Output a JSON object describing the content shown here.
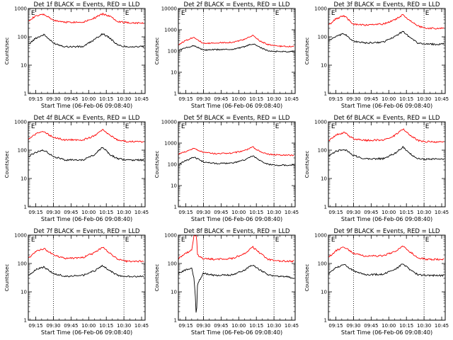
{
  "chart_data": [
    {
      "type": "line",
      "title": "Det 1f BLACK = Events, RED = LLD",
      "xlabel": "Start Time (06-Feb-06 09:08:40)",
      "ylabel": "Counts/sec",
      "yscale": "log",
      "ylim": [
        1,
        1000
      ],
      "xlim": [
        "09:08:40",
        "10:48:00"
      ],
      "xticks": [
        "09:15",
        "09:30",
        "09:45",
        "10:00",
        "10:15",
        "10:30",
        "10:45"
      ],
      "yticks": [
        "1",
        "10",
        "100",
        "1000"
      ],
      "vlines": [
        "09:30",
        "10:30"
      ],
      "markers": [
        {
          "label": "E",
          "time": "09:11"
        },
        {
          "label": "E",
          "time": "10:31"
        }
      ],
      "series": [
        {
          "color": "#ff0000",
          "x": [
            "09:09",
            "09:15",
            "09:22",
            "09:30",
            "09:40",
            "09:55",
            "10:05",
            "10:12",
            "10:18",
            "10:25",
            "10:32",
            "10:40",
            "10:47"
          ],
          "values": [
            380,
            540,
            620,
            380,
            330,
            330,
            470,
            640,
            540,
            350,
            320,
            310,
            310
          ]
        },
        {
          "color": "#000000",
          "x": [
            "09:09",
            "09:15",
            "09:22",
            "09:30",
            "09:40",
            "09:55",
            "10:05",
            "10:12",
            "10:18",
            "10:25",
            "10:32",
            "10:40",
            "10:47"
          ],
          "values": [
            55,
            90,
            120,
            60,
            45,
            45,
            80,
            130,
            90,
            50,
            45,
            45,
            45
          ]
        }
      ]
    },
    {
      "type": "line",
      "title": "Det 2f BLACK = Events, RED = LLD",
      "xlabel": "Start Time (06-Feb-06 09:08:40)",
      "ylabel": "Counts/sec",
      "yscale": "log",
      "ylim": [
        1,
        10000
      ],
      "xlim": [
        "09:08:40",
        "10:48:00"
      ],
      "xticks": [
        "09:15",
        "09:30",
        "09:45",
        "10:00",
        "10:15",
        "10:30",
        "10:45"
      ],
      "yticks": [
        "1",
        "10",
        "100",
        "1000",
        "10000"
      ],
      "vlines": [
        "09:30",
        "10:30"
      ],
      "markers": [
        {
          "label": "E",
          "time": "09:11"
        },
        {
          "label": "E",
          "time": "10:31"
        }
      ],
      "series": [
        {
          "color": "#ff0000",
          "x": [
            "09:09",
            "09:15",
            "09:22",
            "09:30",
            "09:40",
            "09:55",
            "10:05",
            "10:12",
            "10:18",
            "10:25",
            "10:32",
            "10:40",
            "10:47"
          ],
          "values": [
            200,
            320,
            450,
            220,
            240,
            260,
            350,
            540,
            300,
            200,
            170,
            165,
            165
          ]
        },
        {
          "color": "#000000",
          "x": [
            "09:09",
            "09:15",
            "09:22",
            "09:30",
            "09:40",
            "09:55",
            "10:05",
            "10:12",
            "10:18",
            "10:25",
            "10:32",
            "10:40",
            "10:47"
          ],
          "values": [
            110,
            140,
            180,
            110,
            115,
            120,
            160,
            220,
            150,
            100,
            95,
            95,
            95
          ]
        }
      ]
    },
    {
      "type": "line",
      "title": "Det 3f BLACK = Events, RED = LLD",
      "xlabel": "Start Time (06-Feb-06 09:08:40)",
      "ylabel": "Counts/sec",
      "yscale": "log",
      "ylim": [
        1,
        1000
      ],
      "xlim": [
        "09:08:40",
        "10:48:00"
      ],
      "xticks": [
        "09:15",
        "09:30",
        "09:45",
        "10:00",
        "10:15",
        "10:30",
        "10:45"
      ],
      "yticks": [
        "1",
        "10",
        "100",
        "1000"
      ],
      "vlines": [
        "09:30",
        "10:30"
      ],
      "markers": [
        {
          "label": "E",
          "time": "09:11"
        },
        {
          "label": "E",
          "time": "10:31"
        }
      ],
      "series": [
        {
          "color": "#ff0000",
          "x": [
            "09:09",
            "09:15",
            "09:22",
            "09:30",
            "09:40",
            "09:55",
            "10:05",
            "10:12",
            "10:18",
            "10:25",
            "10:32",
            "10:40",
            "10:47"
          ],
          "values": [
            260,
            430,
            560,
            280,
            260,
            280,
            400,
            600,
            380,
            240,
            200,
            200,
            200
          ]
        },
        {
          "color": "#000000",
          "x": [
            "09:09",
            "09:15",
            "09:22",
            "09:30",
            "09:40",
            "09:55",
            "10:05",
            "10:12",
            "10:18",
            "10:25",
            "10:32",
            "10:40",
            "10:47"
          ],
          "values": [
            75,
            100,
            130,
            70,
            60,
            65,
            100,
            160,
            95,
            60,
            55,
            55,
            55
          ]
        }
      ]
    },
    {
      "type": "line",
      "title": "Det 4f BLACK = Events, RED = LLD",
      "xlabel": "Start Time (06-Feb-06 09:08:40)",
      "ylabel": "Counts/sec",
      "yscale": "log",
      "ylim": [
        1,
        1000
      ],
      "xlim": [
        "09:08:40",
        "10:48:00"
      ],
      "xticks": [
        "09:15",
        "09:30",
        "09:45",
        "10:00",
        "10:15",
        "10:30",
        "10:45"
      ],
      "yticks": [
        "1",
        "10",
        "100",
        "1000"
      ],
      "vlines": [
        "09:30",
        "10:30"
      ],
      "markers": [
        {
          "label": "E",
          "time": "09:11"
        },
        {
          "label": "E",
          "time": "10:31"
        }
      ],
      "series": [
        {
          "color": "#ff0000",
          "x": [
            "09:09",
            "09:15",
            "09:22",
            "09:30",
            "09:40",
            "09:55",
            "10:05",
            "10:12",
            "10:18",
            "10:25",
            "10:32",
            "10:40",
            "10:47"
          ],
          "values": [
            240,
            380,
            450,
            280,
            230,
            230,
            320,
            520,
            330,
            230,
            200,
            200,
            200
          ]
        },
        {
          "color": "#000000",
          "x": [
            "09:09",
            "09:15",
            "09:22",
            "09:30",
            "09:40",
            "09:55",
            "10:05",
            "10:12",
            "10:18",
            "10:25",
            "10:32",
            "10:40",
            "10:47"
          ],
          "values": [
            60,
            85,
            100,
            60,
            45,
            45,
            70,
            130,
            70,
            50,
            45,
            45,
            45
          ]
        }
      ]
    },
    {
      "type": "line",
      "title": "Det 5f BLACK = Events, RED = LLD",
      "xlabel": "Start Time (06-Feb-06 09:08:40)",
      "ylabel": "Counts/sec",
      "yscale": "log",
      "ylim": [
        1,
        10000
      ],
      "xlim": [
        "09:08:40",
        "10:48:00"
      ],
      "xticks": [
        "09:15",
        "09:30",
        "09:45",
        "10:00",
        "10:15",
        "10:30",
        "10:45"
      ],
      "yticks": [
        "1",
        "10",
        "100",
        "1000",
        "10000"
      ],
      "vlines": [
        "09:30",
        "10:30"
      ],
      "markers": [
        {
          "label": "E",
          "time": "09:11"
        },
        {
          "label": "E",
          "time": "10:31"
        }
      ],
      "series": [
        {
          "color": "#ff0000",
          "x": [
            "09:09",
            "09:15",
            "09:22",
            "09:30",
            "09:40",
            "09:55",
            "10:05",
            "10:12",
            "10:18",
            "10:25",
            "10:32",
            "10:40",
            "10:47"
          ],
          "values": [
            300,
            400,
            560,
            360,
            320,
            340,
            450,
            650,
            400,
            300,
            280,
            270,
            270
          ]
        },
        {
          "color": "#000000",
          "x": [
            "09:09",
            "09:15",
            "09:22",
            "09:30",
            "09:40",
            "09:55",
            "10:05",
            "10:12",
            "10:18",
            "10:25",
            "10:32",
            "10:40",
            "10:47"
          ],
          "values": [
            100,
            150,
            220,
            130,
            110,
            115,
            160,
            250,
            150,
            100,
            90,
            90,
            90
          ]
        }
      ]
    },
    {
      "type": "line",
      "title": "Det 6f BLACK = Events, RED = LLD",
      "xlabel": "Start Time (06-Feb-06 09:08:40)",
      "ylabel": "Counts/sec",
      "yscale": "log",
      "ylim": [
        1,
        1000
      ],
      "xlim": [
        "09:08:40",
        "10:48:00"
      ],
      "xticks": [
        "09:15",
        "09:30",
        "09:45",
        "10:00",
        "10:15",
        "10:30",
        "10:45"
      ],
      "yticks": [
        "1",
        "10",
        "100",
        "1000"
      ],
      "vlines": [
        "09:30",
        "10:30"
      ],
      "markers": [
        {
          "label": "E",
          "time": "09:11"
        },
        {
          "label": "E",
          "time": "10:31"
        }
      ],
      "series": [
        {
          "color": "#ff0000",
          "x": [
            "09:09",
            "09:15",
            "09:22",
            "09:30",
            "09:40",
            "09:55",
            "10:05",
            "10:12",
            "10:18",
            "10:25",
            "10:32",
            "10:40",
            "10:47"
          ],
          "values": [
            220,
            340,
            420,
            250,
            220,
            230,
            330,
            560,
            340,
            220,
            200,
            195,
            195
          ]
        },
        {
          "color": "#000000",
          "x": [
            "09:09",
            "09:15",
            "09:22",
            "09:30",
            "09:40",
            "09:55",
            "10:05",
            "10:12",
            "10:18",
            "10:25",
            "10:32",
            "10:40",
            "10:47"
          ],
          "values": [
            60,
            90,
            110,
            65,
            50,
            50,
            75,
            130,
            75,
            50,
            48,
            48,
            48
          ]
        }
      ]
    },
    {
      "type": "line",
      "title": "Det 7f BLACK = Events, RED = LLD",
      "xlabel": "Start Time (06-Feb-06 09:08:40)",
      "ylabel": "Counts/sec",
      "yscale": "log",
      "ylim": [
        1,
        1000
      ],
      "xlim": [
        "09:08:40",
        "10:48:00"
      ],
      "xticks": [
        "09:15",
        "09:30",
        "09:45",
        "10:00",
        "10:15",
        "10:30",
        "10:45"
      ],
      "yticks": [
        "1",
        "10",
        "100",
        "1000"
      ],
      "vlines": [
        "09:30",
        "10:30"
      ],
      "markers": [
        {
          "label": "E",
          "time": "09:11"
        },
        {
          "label": "E",
          "time": "10:31"
        }
      ],
      "series": [
        {
          "color": "#ff0000",
          "x": [
            "09:09",
            "09:15",
            "09:22",
            "09:30",
            "09:40",
            "09:55",
            "10:05",
            "10:12",
            "10:18",
            "10:25",
            "10:32",
            "10:40",
            "10:47"
          ],
          "values": [
            160,
            260,
            340,
            200,
            150,
            160,
            240,
            380,
            230,
            140,
            120,
            120,
            120
          ]
        },
        {
          "color": "#000000",
          "x": [
            "09:09",
            "09:15",
            "09:22",
            "09:30",
            "09:40",
            "09:55",
            "10:05",
            "10:12",
            "10:18",
            "10:25",
            "10:32",
            "10:40",
            "10:47"
          ],
          "values": [
            40,
            60,
            75,
            45,
            35,
            38,
            55,
            85,
            55,
            38,
            35,
            35,
            35
          ]
        }
      ]
    },
    {
      "type": "line",
      "title": "Det 8f BLACK = Events, RED = LLD",
      "xlabel": "Start Time (06-Feb-06 09:08:40)",
      "ylabel": "Counts/sec",
      "yscale": "log",
      "ylim": [
        1,
        1000
      ],
      "xlim": [
        "09:08:40",
        "10:48:00"
      ],
      "xticks": [
        "09:15",
        "09:30",
        "09:45",
        "10:00",
        "10:15",
        "10:30",
        "10:45"
      ],
      "yticks": [
        "1",
        "10",
        "100",
        "1000"
      ],
      "vlines": [
        "09:30",
        "10:30"
      ],
      "markers": [
        {
          "label": "E",
          "time": "09:11"
        },
        {
          "label": "E",
          "time": "10:31"
        }
      ],
      "series": [
        {
          "color": "#ff0000",
          "x": [
            "09:09",
            "09:15",
            "09:20",
            "09:22",
            "09:24",
            "09:25",
            "09:30",
            "09:40",
            "09:55",
            "10:05",
            "10:12",
            "10:18",
            "10:25",
            "10:32",
            "10:40",
            "10:47"
          ],
          "values": [
            150,
            230,
            300,
            1000,
            1000,
            200,
            150,
            140,
            150,
            230,
            380,
            230,
            140,
            125,
            120,
            120
          ]
        },
        {
          "color": "#000000",
          "x": [
            "09:09",
            "09:15",
            "09:20",
            "09:22",
            "09:23",
            "09:24",
            "09:25",
            "09:30",
            "09:40",
            "09:55",
            "10:05",
            "10:12",
            "10:18",
            "10:25",
            "10:32",
            "10:40",
            "10:47"
          ],
          "values": [
            45,
            60,
            70,
            30,
            8,
            1,
            20,
            45,
            38,
            40,
            60,
            90,
            60,
            40,
            35,
            35,
            30
          ]
        }
      ]
    },
    {
      "type": "line",
      "title": "Det 9f BLACK = Events, RED = LLD",
      "xlabel": "Start Time (06-Feb-06 09:08:40)",
      "ylabel": "Counts/sec",
      "yscale": "log",
      "ylim": [
        1,
        1000
      ],
      "xlim": [
        "09:08:40",
        "10:48:00"
      ],
      "xticks": [
        "09:15",
        "09:30",
        "09:45",
        "10:00",
        "10:15",
        "10:30",
        "10:45"
      ],
      "yticks": [
        "1",
        "10",
        "100",
        "1000"
      ],
      "vlines": [
        "09:30",
        "10:30"
      ],
      "markers": [
        {
          "label": "E",
          "time": "09:11"
        },
        {
          "label": "E",
          "time": "10:31"
        }
      ],
      "series": [
        {
          "color": "#ff0000",
          "x": [
            "09:09",
            "09:15",
            "09:22",
            "09:30",
            "09:40",
            "09:55",
            "10:05",
            "10:12",
            "10:18",
            "10:25",
            "10:32",
            "10:40",
            "10:47"
          ],
          "values": [
            170,
            280,
            380,
            230,
            180,
            190,
            260,
            420,
            260,
            160,
            140,
            140,
            140
          ]
        },
        {
          "color": "#000000",
          "x": [
            "09:09",
            "09:15",
            "09:22",
            "09:30",
            "09:40",
            "09:55",
            "10:05",
            "10:12",
            "10:18",
            "10:25",
            "10:32",
            "10:40",
            "10:47"
          ],
          "values": [
            45,
            70,
            95,
            55,
            40,
            42,
            60,
            100,
            60,
            40,
            38,
            38,
            38
          ]
        }
      ]
    }
  ]
}
